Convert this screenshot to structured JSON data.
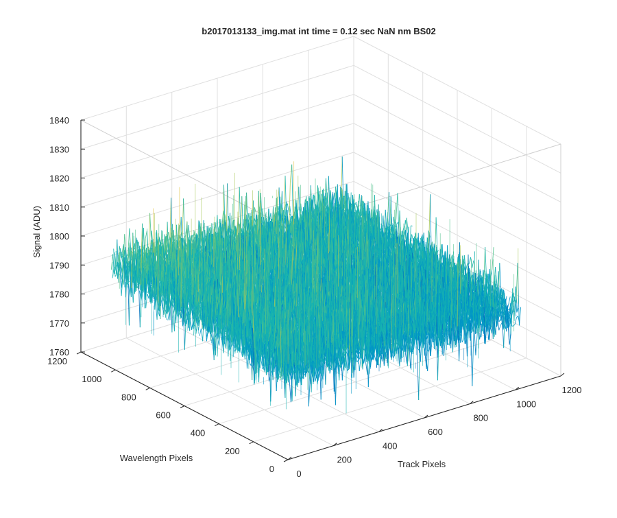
{
  "chart_data": {
    "type": "surface",
    "title": "b2017013133_img.mat int time = 0.12 sec  NaN nm BS02",
    "xlabel": "Track Pixels",
    "ylabel": "Wavelength Pixels",
    "zlabel": "Signal (ADU)",
    "xlim": [
      0,
      1200
    ],
    "ylim": [
      0,
      1200
    ],
    "zlim": [
      1760,
      1840
    ],
    "xticks": [
      0,
      200,
      400,
      600,
      800,
      1000,
      1200
    ],
    "yticks": [
      0,
      200,
      400,
      600,
      800,
      1000,
      1200
    ],
    "zticks": [
      1760,
      1770,
      1780,
      1790,
      1800,
      1810,
      1820,
      1830,
      1840
    ],
    "grid": true,
    "colormap": [
      "#0072bd",
      "#0096c7",
      "#17b2b0",
      "#4fc28c",
      "#a8c85a",
      "#e0c03c"
    ],
    "surface_extent": {
      "x": [
        0,
        1024
      ],
      "y": [
        0,
        1024
      ]
    },
    "signal_mean_by_x": [
      [
        0,
        1795
      ],
      [
        1024,
        1786
      ]
    ],
    "signal_mean_by_y": [
      [
        0,
        1786
      ],
      [
        1024,
        1795
      ]
    ],
    "signal_noise_range": [
      1772,
      1826
    ]
  }
}
